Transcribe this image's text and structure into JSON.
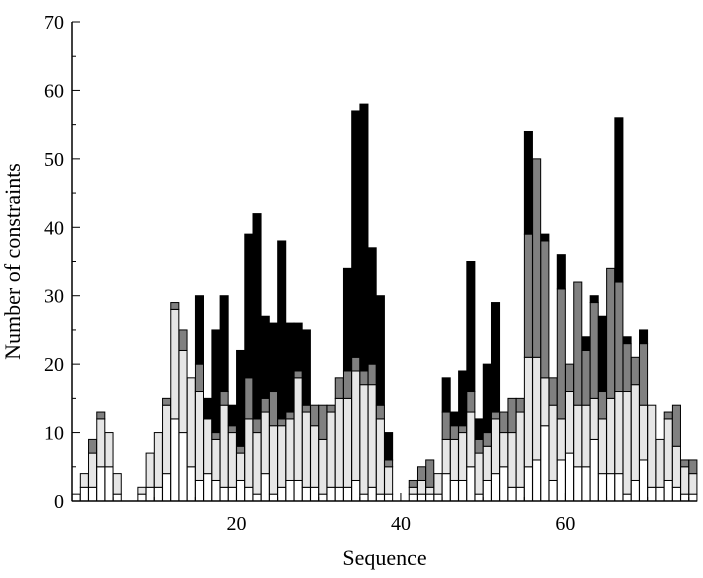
{
  "chart_data": {
    "type": "bar",
    "stacked": true,
    "title": "",
    "xlabel": "Sequence",
    "ylabel": "Number of constraints",
    "xlim": [
      0,
      76
    ],
    "ylim": [
      0,
      70
    ],
    "x_ticks": [
      20,
      40,
      60
    ],
    "y_ticks": [
      0,
      10,
      20,
      30,
      40,
      50,
      60,
      70
    ],
    "grid": false,
    "legend": "none",
    "x": [
      1,
      2,
      3,
      4,
      5,
      6,
      7,
      8,
      9,
      10,
      11,
      12,
      13,
      14,
      15,
      16,
      17,
      18,
      19,
      20,
      21,
      22,
      23,
      24,
      25,
      26,
      27,
      28,
      29,
      30,
      31,
      32,
      33,
      34,
      35,
      36,
      37,
      38,
      39,
      40,
      41,
      42,
      43,
      44,
      45,
      46,
      47,
      48,
      49,
      50,
      51,
      52,
      53,
      54,
      55,
      56,
      57,
      58,
      59,
      60,
      61,
      62,
      63,
      64,
      65,
      66,
      67,
      68,
      69,
      70,
      71,
      72,
      73,
      74,
      75,
      76
    ],
    "series": [
      {
        "color": "#ffffff",
        "values": [
          1,
          2,
          2,
          5,
          5,
          1,
          0,
          0,
          1,
          2,
          2,
          4,
          12,
          10,
          5,
          3,
          4,
          3,
          2,
          2,
          3,
          2,
          1,
          4,
          1,
          2,
          3,
          3,
          2,
          2,
          1,
          2,
          2,
          2,
          3,
          1,
          2,
          1,
          1,
          0,
          0,
          1,
          1,
          1,
          1,
          4,
          3,
          3,
          5,
          1,
          3,
          4,
          5,
          2,
          2,
          5,
          6,
          11,
          3,
          6,
          7,
          5,
          5,
          9,
          4,
          4,
          4,
          1,
          3,
          6,
          2,
          2,
          3,
          2,
          1,
          1
        ]
      },
      {
        "color": "#e6e6e6",
        "values": [
          0,
          2,
          5,
          7,
          5,
          3,
          0,
          0,
          1,
          5,
          8,
          10,
          16,
          12,
          13,
          13,
          8,
          6,
          12,
          8,
          4,
          10,
          9,
          9,
          10,
          9,
          9,
          15,
          11,
          9,
          8,
          11,
          13,
          13,
          16,
          16,
          15,
          11,
          4,
          0,
          0,
          1,
          2,
          1,
          3,
          5,
          6,
          7,
          8,
          6,
          5,
          8,
          5,
          8,
          11,
          16,
          15,
          7,
          11,
          6,
          9,
          9,
          9,
          6,
          8,
          11,
          12,
          15,
          14,
          8,
          12,
          7,
          9,
          6,
          4,
          3
        ]
      },
      {
        "color": "#808080",
        "values": [
          0,
          0,
          2,
          1,
          0,
          0,
          0,
          0,
          0,
          0,
          0,
          1,
          1,
          3,
          0,
          4,
          0,
          1,
          2,
          1,
          1,
          6,
          2,
          2,
          5,
          1,
          1,
          1,
          1,
          3,
          5,
          1,
          3,
          4,
          2,
          2,
          3,
          2,
          1,
          0,
          0,
          1,
          2,
          4,
          0,
          4,
          2,
          1,
          3,
          2,
          2,
          1,
          3,
          5,
          2,
          18,
          29,
          20,
          4,
          19,
          4,
          18,
          8,
          14,
          4,
          19,
          16,
          7,
          4,
          9,
          0,
          0,
          1,
          6,
          1,
          2
        ]
      },
      {
        "color": "#000000",
        "values": [
          0,
          0,
          0,
          0,
          0,
          0,
          0,
          0,
          0,
          0,
          0,
          0,
          0,
          0,
          0,
          10,
          3,
          15,
          14,
          3,
          14,
          21,
          30,
          12,
          10,
          26,
          13,
          7,
          11,
          0,
          0,
          0,
          0,
          15,
          36,
          39,
          17,
          16,
          4,
          0,
          0,
          0,
          0,
          0,
          0,
          5,
          2,
          8,
          19,
          3,
          10,
          16,
          0,
          0,
          0,
          15,
          0,
          1,
          0,
          5,
          0,
          0,
          2,
          1,
          11,
          0,
          24,
          1,
          0,
          2,
          0,
          0,
          0,
          0,
          0,
          0
        ]
      }
    ]
  }
}
